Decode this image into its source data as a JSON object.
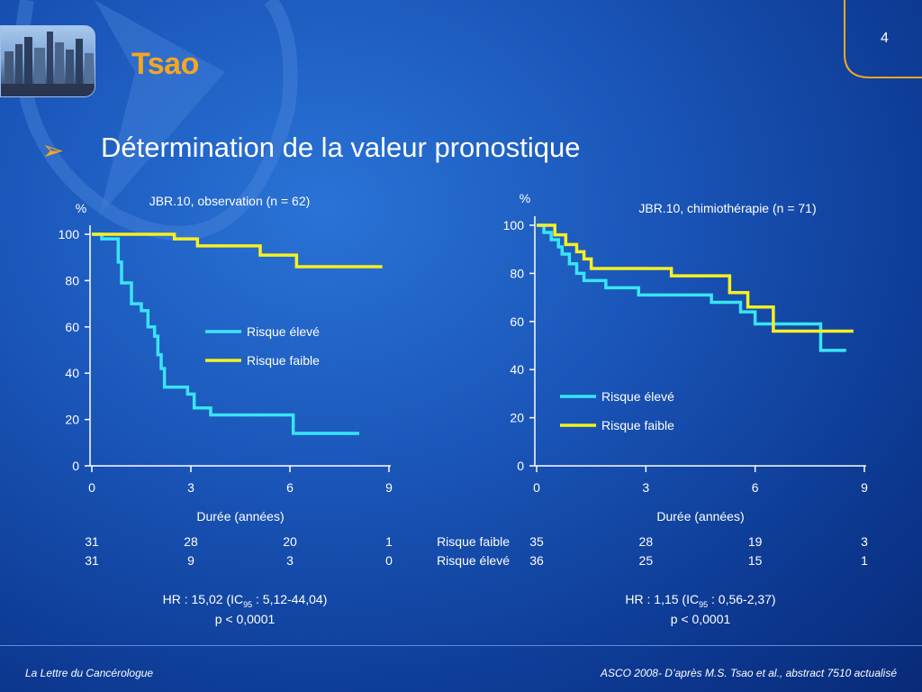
{
  "page_title": "Tsao",
  "page_number": "4",
  "heading": "Détermination de la valeur pronostique",
  "footer": {
    "left": "La Lettre du Cancérologue",
    "right": "ASCO 2008- D’après M.S. Tsao et al., abstract 7510 actualisé"
  },
  "colors": {
    "risque_eleve": "#39e4f7",
    "risque_faible": "#f6f022",
    "accent": "#f5a623"
  },
  "chart_data": [
    {
      "type": "line",
      "title": "JBR.10, observation (n = 62)",
      "ylabel": "%",
      "xlabel": "Durée (années)",
      "xlim": [
        0,
        9
      ],
      "ylim": [
        0,
        100
      ],
      "xticks": [
        0,
        3,
        6,
        9
      ],
      "yticks": [
        0,
        20,
        40,
        60,
        80,
        100
      ],
      "series": [
        {
          "name": "Risque élevé",
          "color": "#39e4f7",
          "x": [
            0,
            0.3,
            0.8,
            0.9,
            1.2,
            1.5,
            1.7,
            1.9,
            2.0,
            2.1,
            2.2,
            2.4,
            2.9,
            3.1,
            3.6,
            6.1,
            8.1
          ],
          "y": [
            100,
            98,
            88,
            79,
            70,
            67,
            60,
            56,
            48,
            42,
            34,
            34,
            31,
            25,
            22,
            14,
            14
          ]
        },
        {
          "name": "Risque faible",
          "color": "#f6f022",
          "x": [
            0,
            2.5,
            3.2,
            5.1,
            6.2,
            8.8
          ],
          "y": [
            100,
            98,
            95,
            91,
            86,
            86
          ]
        }
      ],
      "risk_table": {
        "rows": [
          {
            "label": "Risque faible",
            "values": [
              "31",
              "28",
              "20",
              "1"
            ]
          },
          {
            "label": "Risque élevé",
            "values": [
              "31",
              "9",
              "3",
              "0"
            ]
          }
        ]
      },
      "hr": {
        "prefix": "HR : 15,02 (IC",
        "sub": "95",
        "suffix": " : 5,12-44,04)"
      },
      "p_value": "p < 0,0001"
    },
    {
      "type": "line",
      "title": "JBR.10, chimiothérapie (n = 71)",
      "ylabel": "%",
      "xlabel": "Durée (années)",
      "xlim": [
        0,
        9
      ],
      "ylim": [
        0,
        100
      ],
      "xticks": [
        0,
        3,
        6,
        9
      ],
      "yticks": [
        0,
        20,
        40,
        60,
        80,
        100
      ],
      "series": [
        {
          "name": "Risque élevé",
          "color": "#39e4f7",
          "x": [
            0,
            0.2,
            0.4,
            0.6,
            0.7,
            0.9,
            1.1,
            1.3,
            1.5,
            1.9,
            2.8,
            4.8,
            5.6,
            6.0,
            7.8,
            8.5
          ],
          "y": [
            100,
            97,
            94,
            91,
            88,
            84,
            80,
            77,
            77,
            74,
            71,
            68,
            64,
            59,
            48,
            48
          ]
        },
        {
          "name": "Risque faible",
          "color": "#f6f022",
          "x": [
            0,
            0.5,
            0.8,
            1.1,
            1.3,
            1.5,
            1.7,
            3.7,
            5.3,
            5.8,
            6.5,
            8.7
          ],
          "y": [
            100,
            96,
            92,
            89,
            86,
            82,
            82,
            79,
            72,
            66,
            56,
            56
          ]
        }
      ],
      "risk_table": {
        "rows": [
          {
            "label": "Risque faible",
            "values": [
              "35",
              "28",
              "19",
              "3"
            ]
          },
          {
            "label": "Risque élevé",
            "values": [
              "36",
              "25",
              "15",
              "1"
            ]
          }
        ]
      },
      "hr": {
        "prefix": "HR : 1,15 (IC",
        "sub": "95",
        "suffix": " : 0,56-2,37)"
      },
      "p_value": "p < 0,0001"
    }
  ]
}
